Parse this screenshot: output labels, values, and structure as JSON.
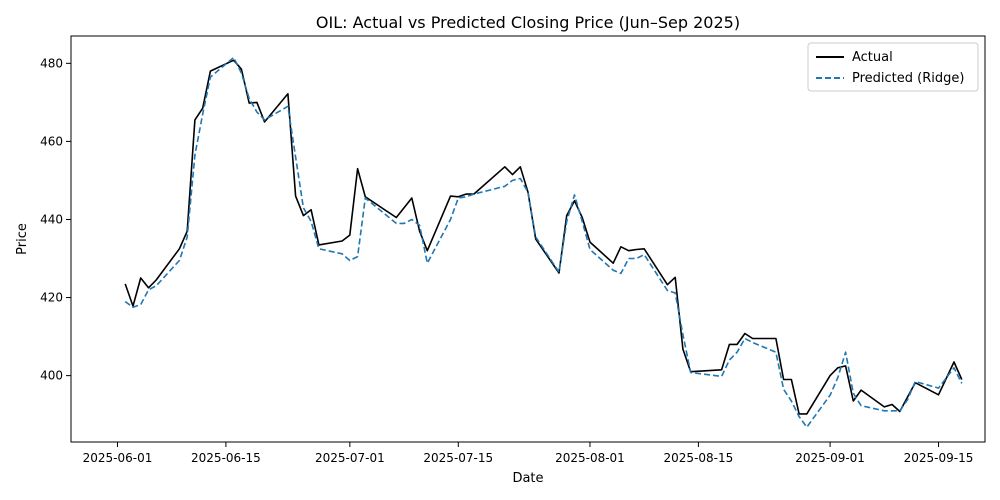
{
  "chart_data": {
    "type": "line",
    "title": "OIL: Actual vs Predicted Closing Price (Jun–Sep 2025)",
    "xlabel": "Date",
    "ylabel": "Price",
    "xlim": [
      "2025-05-26",
      "2025-09-21"
    ],
    "ylim": [
      383,
      487
    ],
    "xticks": [
      "2025-06-01",
      "2025-06-15",
      "2025-07-01",
      "2025-07-15",
      "2025-08-01",
      "2025-08-15",
      "2025-09-01",
      "2025-09-15"
    ],
    "yticks": [
      400,
      420,
      440,
      460,
      480
    ],
    "grid": false,
    "legend_position": "upper right",
    "series": [
      {
        "name": "Actual",
        "color": "#000000",
        "style": "solid",
        "points": [
          [
            "2025-06-02",
            423.5
          ],
          [
            "2025-06-03",
            417.8
          ],
          [
            "2025-06-04",
            425.0
          ],
          [
            "2025-06-05",
            422.5
          ],
          [
            "2025-06-06",
            424.5
          ],
          [
            "2025-06-09",
            432.5
          ],
          [
            "2025-06-10",
            437.0
          ],
          [
            "2025-06-11",
            465.5
          ],
          [
            "2025-06-12",
            468.5
          ],
          [
            "2025-06-13",
            478.0
          ],
          [
            "2025-06-16",
            480.8
          ],
          [
            "2025-06-17",
            478.5
          ],
          [
            "2025-06-18",
            469.8
          ],
          [
            "2025-06-19",
            470.0
          ],
          [
            "2025-06-20",
            465.0
          ],
          [
            "2025-06-23",
            472.2
          ],
          [
            "2025-06-24",
            446.0
          ],
          [
            "2025-06-25",
            441.0
          ],
          [
            "2025-06-26",
            442.5
          ],
          [
            "2025-06-27",
            433.5
          ],
          [
            "2025-06-30",
            434.5
          ],
          [
            "2025-07-01",
            436.0
          ],
          [
            "2025-07-02",
            453.0
          ],
          [
            "2025-07-03",
            445.8
          ],
          [
            "2025-07-07",
            440.5
          ],
          [
            "2025-07-08",
            443.0
          ],
          [
            "2025-07-09",
            445.5
          ],
          [
            "2025-07-10",
            437.0
          ],
          [
            "2025-07-11",
            432.0
          ],
          [
            "2025-07-14",
            446.0
          ],
          [
            "2025-07-15",
            445.8
          ],
          [
            "2025-07-16",
            446.5
          ],
          [
            "2025-07-17",
            446.5
          ],
          [
            "2025-07-21",
            453.5
          ],
          [
            "2025-07-22",
            451.5
          ],
          [
            "2025-07-23",
            453.5
          ],
          [
            "2025-07-24",
            447.0
          ],
          [
            "2025-07-25",
            435.0
          ],
          [
            "2025-07-28",
            426.3
          ],
          [
            "2025-07-29",
            441.0
          ],
          [
            "2025-07-30",
            444.8
          ],
          [
            "2025-07-31",
            440.5
          ],
          [
            "2025-08-01",
            434.2
          ],
          [
            "2025-08-04",
            428.8
          ],
          [
            "2025-08-05",
            433.0
          ],
          [
            "2025-08-06",
            432.0
          ],
          [
            "2025-08-07",
            432.3
          ],
          [
            "2025-08-08",
            432.5
          ],
          [
            "2025-08-11",
            423.3
          ],
          [
            "2025-08-12",
            425.2
          ],
          [
            "2025-08-13",
            406.8
          ],
          [
            "2025-08-14",
            401.0
          ],
          [
            "2025-08-18",
            401.5
          ],
          [
            "2025-08-19",
            408.0
          ],
          [
            "2025-08-20",
            408.0
          ],
          [
            "2025-08-21",
            410.8
          ],
          [
            "2025-08-22",
            409.5
          ],
          [
            "2025-08-25",
            409.5
          ],
          [
            "2025-08-26",
            399.0
          ],
          [
            "2025-08-27",
            399.0
          ],
          [
            "2025-08-28",
            390.2
          ],
          [
            "2025-08-29",
            390.2
          ],
          [
            "2025-09-01",
            400.0
          ],
          [
            "2025-09-02",
            402.0
          ],
          [
            "2025-09-03",
            402.5
          ],
          [
            "2025-09-04",
            393.5
          ],
          [
            "2025-09-05",
            396.3
          ],
          [
            "2025-09-08",
            392.0
          ],
          [
            "2025-09-09",
            392.6
          ],
          [
            "2025-09-10",
            390.8
          ],
          [
            "2025-09-11",
            394.5
          ],
          [
            "2025-09-12",
            398.2
          ],
          [
            "2025-09-15",
            395.1
          ],
          [
            "2025-09-17",
            403.5
          ],
          [
            "2025-09-18",
            399.0
          ]
        ]
      },
      {
        "name": "Predicted (Ridge)",
        "color": "#1f77b4",
        "style": "dashed",
        "points": [
          [
            "2025-06-02",
            419.0
          ],
          [
            "2025-06-03",
            417.5
          ],
          [
            "2025-06-04",
            418.2
          ],
          [
            "2025-06-05",
            422.0
          ],
          [
            "2025-06-06",
            423.0
          ],
          [
            "2025-06-09",
            429.5
          ],
          [
            "2025-06-10",
            435.5
          ],
          [
            "2025-06-11",
            456.5
          ],
          [
            "2025-06-12",
            467.0
          ],
          [
            "2025-06-13",
            476.5
          ],
          [
            "2025-06-16",
            481.5
          ],
          [
            "2025-06-17",
            477.5
          ],
          [
            "2025-06-18",
            471.0
          ],
          [
            "2025-06-19",
            467.5
          ],
          [
            "2025-06-20",
            465.5
          ],
          [
            "2025-06-23",
            469.0
          ],
          [
            "2025-06-24",
            456.0
          ],
          [
            "2025-06-25",
            443.0
          ],
          [
            "2025-06-26",
            439.5
          ],
          [
            "2025-06-27",
            432.5
          ],
          [
            "2025-06-30",
            431.2
          ],
          [
            "2025-07-01",
            429.5
          ],
          [
            "2025-07-02",
            430.5
          ],
          [
            "2025-07-03",
            445.5
          ],
          [
            "2025-07-07",
            439.0
          ],
          [
            "2025-07-08",
            439.0
          ],
          [
            "2025-07-09",
            440.0
          ],
          [
            "2025-07-10",
            438.5
          ],
          [
            "2025-07-11",
            428.8
          ],
          [
            "2025-07-14",
            440.0
          ],
          [
            "2025-07-15",
            445.5
          ],
          [
            "2025-07-16",
            445.8
          ],
          [
            "2025-07-17",
            446.5
          ],
          [
            "2025-07-21",
            448.5
          ],
          [
            "2025-07-22",
            450.0
          ],
          [
            "2025-07-23",
            450.5
          ],
          [
            "2025-07-24",
            447.0
          ],
          [
            "2025-07-25",
            435.5
          ],
          [
            "2025-07-28",
            426.5
          ],
          [
            "2025-07-29",
            439.5
          ],
          [
            "2025-07-30",
            446.3
          ],
          [
            "2025-07-31",
            439.5
          ],
          [
            "2025-08-01",
            432.3
          ],
          [
            "2025-08-04",
            427.0
          ],
          [
            "2025-08-05",
            426.2
          ],
          [
            "2025-08-06",
            430.0
          ],
          [
            "2025-08-07",
            430.0
          ],
          [
            "2025-08-08",
            431.0
          ],
          [
            "2025-08-11",
            421.8
          ],
          [
            "2025-08-12",
            421.2
          ],
          [
            "2025-08-13",
            410.5
          ],
          [
            "2025-08-14",
            400.8
          ],
          [
            "2025-08-18",
            399.8
          ],
          [
            "2025-08-19",
            404.0
          ],
          [
            "2025-08-20",
            406.0
          ],
          [
            "2025-08-21",
            409.5
          ],
          [
            "2025-08-22",
            408.5
          ],
          [
            "2025-08-25",
            406.0
          ],
          [
            "2025-08-26",
            396.5
          ],
          [
            "2025-08-27",
            393.5
          ],
          [
            "2025-08-28",
            389.5
          ],
          [
            "2025-08-29",
            386.8
          ],
          [
            "2025-09-01",
            395.0
          ],
          [
            "2025-09-02",
            399.5
          ],
          [
            "2025-09-03",
            406.0
          ],
          [
            "2025-09-04",
            395.5
          ],
          [
            "2025-09-05",
            392.3
          ],
          [
            "2025-09-08",
            391.0
          ],
          [
            "2025-09-09",
            391.0
          ],
          [
            "2025-09-10",
            391.0
          ],
          [
            "2025-09-11",
            393.8
          ],
          [
            "2025-09-12",
            398.5
          ],
          [
            "2025-09-15",
            396.8
          ],
          [
            "2025-09-17",
            402.0
          ],
          [
            "2025-09-18",
            398.0
          ]
        ]
      }
    ]
  }
}
